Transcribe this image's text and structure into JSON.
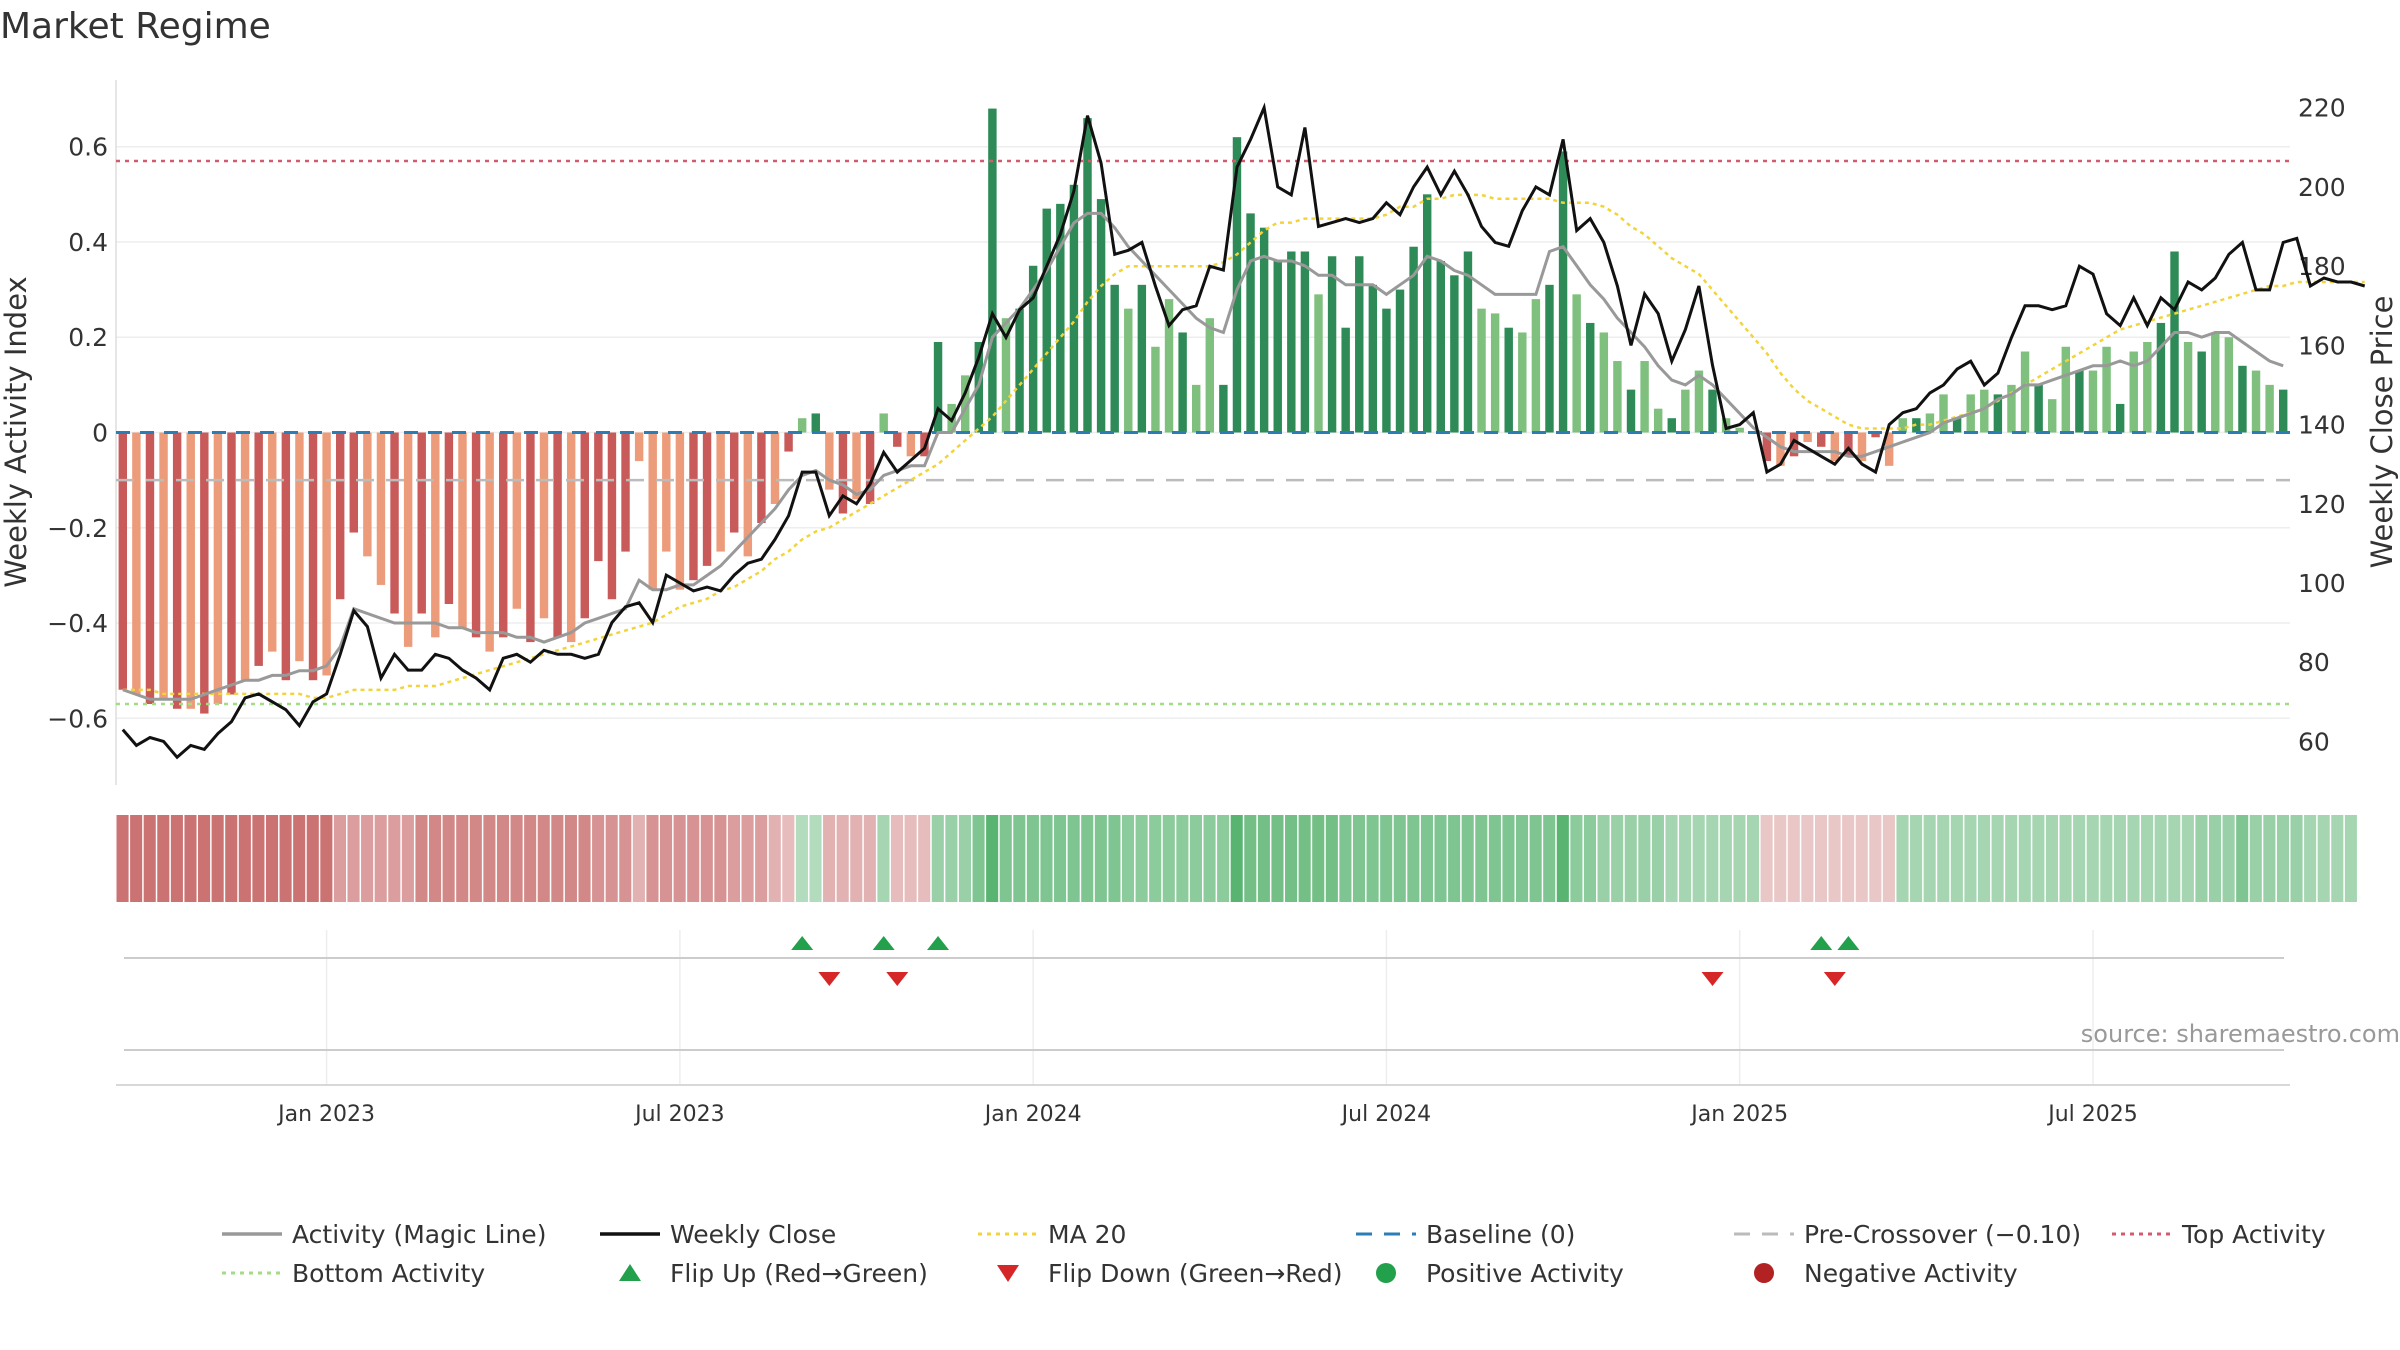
{
  "chart_data": {
    "type": "bar",
    "title": "Market Regime",
    "ylabel_left": "Weekly Activity Index",
    "ylabel_right": "Weekly Close Price",
    "source": "source: sharemaestro.com",
    "y_left_range": [
      -0.74,
      0.74
    ],
    "y_right_range": [
      49,
      227
    ],
    "y_left_ticks": [
      {
        "v": 0.6,
        "label": "0.6"
      },
      {
        "v": 0.4,
        "label": "0.4"
      },
      {
        "v": 0.2,
        "label": "0.2"
      },
      {
        "v": 0,
        "label": "0"
      },
      {
        "v": -0.2,
        "label": "−0.2"
      },
      {
        "v": -0.4,
        "label": "−0.4"
      },
      {
        "v": -0.6,
        "label": "−0.6"
      }
    ],
    "y_right_ticks": [
      "220",
      "200",
      "180",
      "160",
      "140",
      "120",
      "100",
      "80",
      "60"
    ],
    "x_ticks": [
      {
        "week": 15,
        "label": "Jan 2023"
      },
      {
        "week": 41,
        "label": "Jul 2023"
      },
      {
        "week": 67,
        "label": "Jan 2024"
      },
      {
        "week": 93,
        "label": "Jul 2024"
      },
      {
        "week": 119,
        "label": "Jan 2025"
      },
      {
        "week": 145,
        "label": "Jul 2025"
      }
    ],
    "reference_lines": {
      "baseline": 0,
      "pre_crossover": -0.1,
      "top_activity": 0.57,
      "bottom_activity": -0.57
    },
    "activity": [
      -0.54,
      -0.55,
      -0.57,
      -0.56,
      -0.58,
      -0.58,
      -0.59,
      -0.57,
      -0.55,
      -0.52,
      -0.49,
      -0.46,
      -0.52,
      -0.48,
      -0.52,
      -0.51,
      -0.35,
      -0.21,
      -0.26,
      -0.32,
      -0.38,
      -0.45,
      -0.38,
      -0.43,
      -0.36,
      -0.41,
      -0.43,
      -0.46,
      -0.43,
      -0.37,
      -0.44,
      -0.39,
      -0.43,
      -0.44,
      -0.39,
      -0.27,
      -0.35,
      -0.25,
      -0.06,
      -0.33,
      -0.25,
      -0.33,
      -0.31,
      -0.28,
      -0.25,
      -0.21,
      -0.26,
      -0.19,
      -0.15,
      -0.04,
      0.03,
      0.04,
      -0.12,
      -0.17,
      -0.14,
      -0.15,
      0.04,
      -0.03,
      -0.05,
      -0.05,
      0.19,
      0.06,
      0.12,
      0.19,
      0.68,
      0.24,
      0.26,
      0.35,
      0.47,
      0.48,
      0.52,
      0.66,
      0.49,
      0.31,
      0.26,
      0.31,
      0.18,
      0.28,
      0.21,
      0.1,
      0.24,
      0.1,
      0.62,
      0.46,
      0.43,
      0.36,
      0.38,
      0.38,
      0.29,
      0.37,
      0.22,
      0.37,
      0.31,
      0.26,
      0.3,
      0.39,
      0.5,
      0.36,
      0.33,
      0.38,
      0.26,
      0.25,
      0.22,
      0.21,
      0.28,
      0.31,
      0.59,
      0.29,
      0.23,
      0.21,
      0.15,
      0.09,
      0.15,
      0.05,
      0.03,
      0.09,
      0.13,
      0.09,
      0.03,
      0.01,
      0.0,
      -0.06,
      -0.07,
      -0.05,
      -0.02,
      -0.03,
      -0.06,
      -0.05,
      -0.06,
      -0.01,
      -0.07,
      0.03,
      0.03,
      0.04,
      0.08,
      0.03,
      0.08,
      0.09,
      0.08,
      0.1,
      0.17,
      0.1,
      0.07,
      0.18,
      0.13,
      0.13,
      0.18,
      0.06,
      0.17,
      0.19,
      0.23,
      0.38,
      0.19,
      0.17,
      0.21,
      0.2,
      0.14,
      0.13,
      0.1,
      0.09
    ],
    "magic_line": [
      -0.54,
      -0.55,
      -0.56,
      -0.56,
      -0.56,
      -0.56,
      -0.55,
      -0.54,
      -0.53,
      -0.52,
      -0.52,
      -0.51,
      -0.51,
      -0.5,
      -0.5,
      -0.49,
      -0.45,
      -0.37,
      -0.38,
      -0.39,
      -0.4,
      -0.4,
      -0.4,
      -0.4,
      -0.41,
      -0.41,
      -0.42,
      -0.42,
      -0.42,
      -0.43,
      -0.43,
      -0.44,
      -0.43,
      -0.42,
      -0.4,
      -0.39,
      -0.38,
      -0.37,
      -0.31,
      -0.33,
      -0.33,
      -0.32,
      -0.32,
      -0.3,
      -0.28,
      -0.25,
      -0.22,
      -0.19,
      -0.16,
      -0.12,
      -0.09,
      -0.08,
      -0.1,
      -0.11,
      -0.13,
      -0.12,
      -0.09,
      -0.08,
      -0.07,
      -0.07,
      0.0,
      0.0,
      0.05,
      0.1,
      0.2,
      0.23,
      0.26,
      0.3,
      0.34,
      0.39,
      0.44,
      0.46,
      0.46,
      0.43,
      0.39,
      0.36,
      0.33,
      0.3,
      0.27,
      0.24,
      0.22,
      0.21,
      0.3,
      0.36,
      0.37,
      0.36,
      0.36,
      0.35,
      0.33,
      0.33,
      0.31,
      0.31,
      0.31,
      0.29,
      0.31,
      0.33,
      0.37,
      0.36,
      0.34,
      0.33,
      0.31,
      0.29,
      0.29,
      0.29,
      0.29,
      0.38,
      0.39,
      0.35,
      0.31,
      0.28,
      0.24,
      0.21,
      0.18,
      0.14,
      0.11,
      0.1,
      0.12,
      0.1,
      0.07,
      0.04,
      0.01,
      -0.01,
      -0.03,
      -0.04,
      -0.04,
      -0.04,
      -0.04,
      -0.05,
      -0.05,
      -0.04,
      -0.03,
      -0.02,
      -0.01,
      0.0,
      0.02,
      0.03,
      0.04,
      0.05,
      0.07,
      0.08,
      0.1,
      0.1,
      0.11,
      0.12,
      0.13,
      0.14,
      0.14,
      0.15,
      0.14,
      0.15,
      0.18,
      0.21,
      0.21,
      0.2,
      0.21,
      0.21,
      0.19,
      0.17,
      0.15,
      0.14
    ],
    "weekly_close": [
      63,
      59,
      61,
      60,
      56,
      59,
      58,
      62,
      65,
      71,
      72,
      70,
      68,
      64,
      70,
      72,
      82,
      93,
      89,
      76,
      82,
      78,
      78,
      82,
      81,
      78,
      76,
      73,
      81,
      82,
      80,
      83,
      82,
      82,
      81,
      82,
      90,
      94,
      95,
      90,
      102,
      100,
      98,
      99,
      98,
      102,
      105,
      106,
      111,
      117,
      128,
      128,
      117,
      122,
      120,
      125,
      133,
      128,
      131,
      134,
      144,
      141,
      148,
      157,
      168,
      162,
      169,
      172,
      180,
      188,
      199,
      218,
      206,
      183,
      184,
      186,
      175,
      165,
      169,
      170,
      180,
      179,
      205,
      212,
      220,
      200,
      198,
      215,
      190,
      191,
      192,
      191,
      192,
      196,
      193,
      200,
      205,
      198,
      204,
      198,
      190,
      186,
      185,
      194,
      200,
      198,
      212,
      189,
      192,
      186,
      175,
      160,
      173,
      168,
      156,
      164,
      175,
      155,
      139,
      140,
      143,
      128,
      130,
      136,
      134,
      132,
      130,
      134,
      130,
      128,
      140,
      143,
      144,
      148,
      150,
      154,
      156,
      150,
      153,
      162,
      170,
      170,
      169,
      170,
      180,
      178,
      168,
      165,
      172,
      165,
      172,
      169,
      176,
      174,
      177,
      183,
      186,
      174,
      174,
      186,
      187,
      175,
      177,
      176,
      176,
      175
    ],
    "ma20": [
      73,
      73,
      73,
      72,
      72,
      72,
      72,
      72,
      72,
      72,
      72,
      72,
      72,
      72,
      71,
      71,
      72,
      73,
      73,
      73,
      73,
      74,
      74,
      74,
      75,
      76,
      77,
      78,
      79,
      80,
      81,
      82,
      83,
      84,
      85,
      86,
      87,
      88,
      89,
      90,
      92,
      94,
      95,
      96,
      98,
      99,
      101,
      103,
      106,
      108,
      111,
      113,
      114,
      116,
      118,
      120,
      122,
      124,
      126,
      128,
      130,
      133,
      136,
      139,
      142,
      146,
      150,
      154,
      158,
      162,
      166,
      171,
      175,
      178,
      180,
      180,
      180,
      180,
      180,
      180,
      180,
      181,
      183,
      186,
      189,
      191,
      191,
      192,
      192,
      192,
      192,
      192,
      192,
      193,
      195,
      195,
      197,
      197,
      198,
      198,
      198,
      197,
      197,
      197,
      197,
      197,
      196,
      196,
      196,
      195,
      193,
      190,
      188,
      185,
      182,
      180,
      178,
      174,
      170,
      166,
      162,
      158,
      153,
      149,
      146,
      144,
      142,
      140,
      139,
      139,
      139,
      139,
      140,
      140,
      141,
      142,
      143,
      144,
      146,
      148,
      150,
      152,
      154,
      156,
      158,
      160,
      162,
      164,
      165,
      166,
      167,
      168,
      169,
      170,
      171,
      172,
      173,
      174,
      175,
      175,
      176,
      176,
      176,
      176,
      176,
      176
    ],
    "regime_strip": [
      -1,
      -1,
      -1,
      -1,
      -1,
      -1,
      -1,
      -1,
      -1,
      -1,
      -1,
      -1,
      -1,
      -1,
      -1,
      -1,
      -0.6,
      -0.6,
      -0.6,
      -0.6,
      -0.6,
      -0.6,
      -0.8,
      -0.8,
      -0.8,
      -0.8,
      -0.8,
      -0.8,
      -0.8,
      -0.8,
      -0.8,
      -0.8,
      -0.8,
      -0.8,
      -0.8,
      -0.7,
      -0.7,
      -0.7,
      -0.4,
      -0.7,
      -0.7,
      -0.7,
      -0.7,
      -0.7,
      -0.7,
      -0.6,
      -0.6,
      -0.6,
      -0.4,
      -0.3,
      0.2,
      0.2,
      -0.4,
      -0.4,
      -0.4,
      -0.4,
      0.3,
      -0.3,
      -0.3,
      -0.3,
      0.4,
      0.4,
      0.4,
      0.6,
      0.9,
      0.6,
      0.6,
      0.6,
      0.6,
      0.6,
      0.6,
      0.6,
      0.6,
      0.6,
      0.5,
      0.5,
      0.5,
      0.5,
      0.5,
      0.5,
      0.5,
      0.5,
      0.9,
      0.7,
      0.7,
      0.7,
      0.7,
      0.7,
      0.7,
      0.7,
      0.6,
      0.6,
      0.6,
      0.6,
      0.6,
      0.6,
      0.6,
      0.6,
      0.6,
      0.6,
      0.6,
      0.6,
      0.6,
      0.6,
      0.6,
      0.6,
      0.9,
      0.5,
      0.5,
      0.4,
      0.4,
      0.4,
      0.4,
      0.4,
      0.3,
      0.3,
      0.3,
      0.3,
      0.3,
      0.3,
      0.3,
      -0.2,
      -0.2,
      -0.2,
      -0.2,
      -0.2,
      -0.2,
      -0.2,
      -0.2,
      -0.2,
      -0.2,
      0.3,
      0.3,
      0.3,
      0.3,
      0.3,
      0.3,
      0.3,
      0.3,
      0.3,
      0.3,
      0.3,
      0.3,
      0.3,
      0.3,
      0.3,
      0.3,
      0.3,
      0.3,
      0.3,
      0.3,
      0.3,
      0.3,
      0.4,
      0.4,
      0.4,
      0.6,
      0.4,
      0.4,
      0.4,
      0.4,
      0.3,
      0.3,
      0.3,
      0.3
    ],
    "flip_up_weeks": [
      50,
      56,
      60,
      125,
      127
    ],
    "flip_down_weeks": [
      52,
      57,
      117,
      126
    ],
    "legend": [
      {
        "label": "Activity (Magic Line)",
        "kind": "solid",
        "color": "#999999"
      },
      {
        "label": "Weekly Close",
        "kind": "solid",
        "color": "#111111"
      },
      {
        "label": "MA 20",
        "kind": "dotted",
        "color": "#f2d43a"
      },
      {
        "label": "Baseline (0)",
        "kind": "dashed",
        "color": "#2a7db5"
      },
      {
        "label": "Pre-Crossover (−0.10)",
        "kind": "dashed",
        "color": "#bbbbbb"
      },
      {
        "label": "Top Activity",
        "kind": "dotted",
        "color": "#d35b6f"
      },
      {
        "label": "Bottom Activity",
        "kind": "dotted",
        "color": "#a2dc85"
      },
      {
        "label": "Flip Up (Red→Green)",
        "kind": "tri-up",
        "color": "#22a04b"
      },
      {
        "label": "Flip Down (Green→Red)",
        "kind": "tri-down",
        "color": "#d62728"
      },
      {
        "label": "Positive Activity",
        "kind": "dot",
        "color": "#22a04b"
      },
      {
        "label": "Negative Activity",
        "kind": "dot",
        "color": "#b22222"
      }
    ],
    "colors": {
      "pos_dark": "#2e8b57",
      "pos_light": "#7fc07f",
      "neg_dark": "#c85a5a",
      "neg_light": "#ec9c7a",
      "grid": "#eeeeee"
    }
  }
}
